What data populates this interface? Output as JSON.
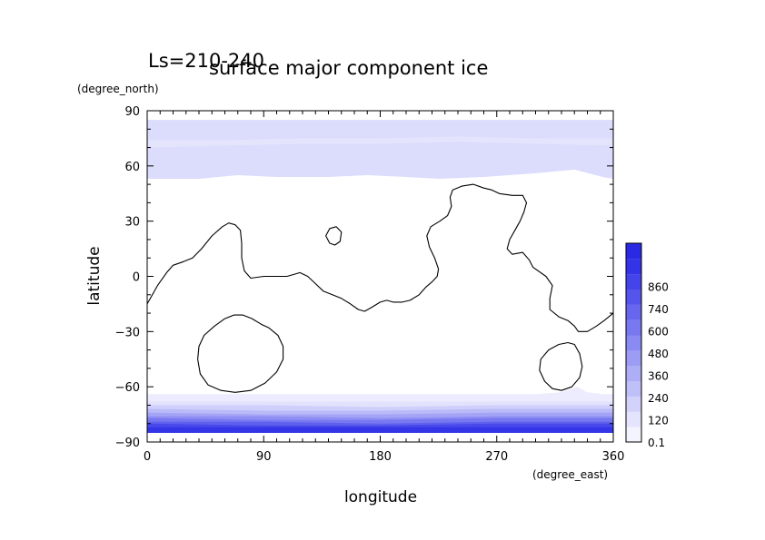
{
  "chart_data": {
    "type": "contour-map",
    "title": "surface major component ice",
    "subtitle": "Ls=210-240",
    "xlabel": "longitude",
    "ylabel": "latitude",
    "x_units": "(degree_east)",
    "y_units": "(degree_north)",
    "xlim": [
      0,
      360
    ],
    "ylim": [
      -90,
      90
    ],
    "x_ticks": [
      0,
      90,
      180,
      270,
      360
    ],
    "y_ticks": [
      -90,
      -60,
      -30,
      0,
      30,
      60,
      90
    ],
    "colorbar_labels": [
      "0.1",
      "120",
      "240",
      "360",
      "480",
      "600",
      "740",
      "860"
    ],
    "colorbar_colors": [
      "#f4f4ff",
      "#e4e4fd",
      "#d2d2fb",
      "#c0c0f9",
      "#aeaef7",
      "#9c9cf5",
      "#8a8af3",
      "#7878f1",
      "#6666ef",
      "#5555ed",
      "#4444eb",
      "#3333e8",
      "#2a2ae4"
    ],
    "north_cap": {
      "lat_top": 85,
      "outer_edge": [
        [
          0,
          53
        ],
        [
          40,
          53
        ],
        [
          70,
          55
        ],
        [
          100,
          54
        ],
        [
          140,
          54
        ],
        [
          170,
          55
        ],
        [
          200,
          54
        ],
        [
          225,
          53
        ],
        [
          260,
          54
        ],
        [
          300,
          56
        ],
        [
          330,
          58
        ],
        [
          352,
          54
        ],
        [
          360,
          53
        ]
      ],
      "band_levels": [
        {
          "color": "#e4e4fd",
          "lower": [
            [
              0,
              70
            ],
            [
              60,
              71
            ],
            [
              120,
              72
            ],
            [
              180,
              72
            ],
            [
              240,
              73
            ],
            [
              300,
              72
            ],
            [
              360,
              71
            ]
          ],
          "upper": [
            [
              0,
              74
            ],
            [
              60,
              74
            ],
            [
              120,
              75
            ],
            [
              180,
              75
            ],
            [
              240,
              76
            ],
            [
              300,
              75
            ],
            [
              360,
              75
            ]
          ]
        }
      ],
      "colors": [
        "#dcdcfc",
        "#d3d3fb"
      ]
    },
    "south_cap": {
      "lat_bottom": -85,
      "outer_edge": [
        [
          0,
          -64
        ],
        [
          60,
          -64
        ],
        [
          120,
          -64
        ],
        [
          180,
          -64
        ],
        [
          240,
          -64
        ],
        [
          300,
          -64
        ],
        [
          320,
          -63
        ],
        [
          332,
          -60
        ],
        [
          340,
          -63
        ],
        [
          352,
          -64
        ],
        [
          360,
          -64
        ]
      ],
      "levels": [
        {
          "color": "#e2e2fd",
          "edge": [
            [
              0,
              -68
            ],
            [
              90,
              -68
            ],
            [
              180,
              -68
            ],
            [
              270,
              -68
            ],
            [
              360,
              -68
            ]
          ]
        },
        {
          "color": "#cfcffb",
          "edge": [
            [
              0,
              -70
            ],
            [
              90,
              -70
            ],
            [
              180,
              -71
            ],
            [
              270,
              -70
            ],
            [
              360,
              -70
            ]
          ]
        },
        {
          "color": "#babaf8",
          "edge": [
            [
              0,
              -72
            ],
            [
              90,
              -73
            ],
            [
              180,
              -73
            ],
            [
              270,
              -72
            ],
            [
              360,
              -72
            ]
          ]
        },
        {
          "color": "#a4a4f6",
          "edge": [
            [
              0,
              -74
            ],
            [
              90,
              -75
            ],
            [
              180,
              -75
            ],
            [
              270,
              -74
            ],
            [
              360,
              -74
            ]
          ]
        },
        {
          "color": "#8e8ef4",
          "edge": [
            [
              0,
              -76
            ],
            [
              90,
              -76
            ],
            [
              180,
              -77
            ],
            [
              270,
              -76
            ],
            [
              360,
              -76
            ]
          ]
        },
        {
          "color": "#7878f1",
          "edge": [
            [
              0,
              -77
            ],
            [
              90,
              -78
            ],
            [
              180,
              -78
            ],
            [
              270,
              -77
            ],
            [
              360,
              -77
            ]
          ]
        },
        {
          "color": "#6060ee",
          "edge": [
            [
              0,
              -79
            ],
            [
              90,
              -79
            ],
            [
              180,
              -80
            ],
            [
              270,
              -79
            ],
            [
              360,
              -79
            ]
          ]
        },
        {
          "color": "#4848eb",
          "edge": [
            [
              0,
              -80
            ],
            [
              90,
              -81
            ],
            [
              180,
              -81
            ],
            [
              270,
              -80
            ],
            [
              360,
              -80
            ]
          ]
        },
        {
          "color": "#3535e8",
          "edge": [
            [
              0,
              -82
            ],
            [
              90,
              -82
            ],
            [
              180,
              -82
            ],
            [
              270,
              -82
            ],
            [
              360,
              -82
            ]
          ]
        }
      ]
    },
    "topography_contours": [
      {
        "closed": false,
        "points": [
          [
            0,
            -15
          ],
          [
            8,
            -5
          ],
          [
            15,
            2
          ],
          [
            20,
            6
          ],
          [
            28,
            8
          ],
          [
            35,
            10
          ],
          [
            42,
            15
          ],
          [
            50,
            22
          ],
          [
            58,
            27
          ],
          [
            63,
            29
          ],
          [
            68,
            28
          ],
          [
            72,
            25
          ],
          [
            73,
            18
          ],
          [
            73,
            10
          ],
          [
            75,
            3
          ],
          [
            80,
            -1
          ],
          [
            90,
            0
          ],
          [
            100,
            0
          ],
          [
            108,
            0
          ],
          [
            113,
            1
          ],
          [
            118,
            2
          ],
          [
            124,
            0
          ],
          [
            130,
            -4
          ],
          [
            136,
            -8
          ],
          [
            143,
            -10
          ],
          [
            150,
            -12
          ],
          [
            157,
            -15
          ],
          [
            163,
            -18
          ],
          [
            168,
            -19
          ],
          [
            173,
            -17
          ],
          [
            180,
            -14
          ],
          [
            185,
            -13
          ],
          [
            190,
            -14
          ],
          [
            197,
            -14
          ],
          [
            203,
            -13
          ],
          [
            210,
            -10
          ],
          [
            215,
            -6
          ],
          [
            220,
            -3
          ],
          [
            224,
            0
          ],
          [
            225,
            4
          ],
          [
            222,
            10
          ],
          [
            218,
            16
          ],
          [
            216,
            22
          ],
          [
            219,
            27
          ],
          [
            226,
            30
          ],
          [
            232,
            33
          ],
          [
            235,
            38
          ],
          [
            234,
            43
          ],
          [
            236,
            47
          ],
          [
            243,
            49
          ],
          [
            252,
            50
          ],
          [
            260,
            48
          ],
          [
            266,
            47
          ],
          [
            272,
            45
          ],
          [
            282,
            44
          ],
          [
            290,
            44
          ],
          [
            293,
            40
          ],
          [
            291,
            35
          ],
          [
            288,
            30
          ],
          [
            284,
            25
          ],
          [
            280,
            20
          ],
          [
            278,
            15
          ],
          [
            282,
            12
          ],
          [
            290,
            13
          ],
          [
            295,
            9
          ],
          [
            298,
            5
          ],
          [
            308,
            0
          ],
          [
            313,
            -5
          ],
          [
            311,
            -12
          ],
          [
            311,
            -18
          ],
          [
            318,
            -22
          ],
          [
            325,
            -24
          ],
          [
            330,
            -27
          ],
          [
            333,
            -30
          ],
          [
            340,
            -30
          ],
          [
            347,
            -27
          ],
          [
            353,
            -24
          ],
          [
            360,
            -20
          ]
        ]
      },
      {
        "closed": true,
        "points": [
          [
            138,
            22
          ],
          [
            141,
            26
          ],
          [
            146,
            27
          ],
          [
            150,
            24
          ],
          [
            149,
            19
          ],
          [
            145,
            17
          ],
          [
            141,
            18
          ]
        ]
      },
      {
        "closed": true,
        "points": [
          [
            67,
            -21
          ],
          [
            60,
            -23
          ],
          [
            52,
            -27
          ],
          [
            44,
            -32
          ],
          [
            40,
            -38
          ],
          [
            39,
            -45
          ],
          [
            41,
            -53
          ],
          [
            47,
            -59
          ],
          [
            57,
            -62
          ],
          [
            68,
            -63
          ],
          [
            80,
            -62
          ],
          [
            91,
            -58
          ],
          [
            100,
            -52
          ],
          [
            105,
            -45
          ],
          [
            105,
            -38
          ],
          [
            101,
            -32
          ],
          [
            94,
            -28
          ],
          [
            88,
            -26
          ],
          [
            81,
            -23
          ],
          [
            74,
            -21
          ]
        ]
      },
      {
        "closed": true,
        "points": [
          [
            325,
            -36
          ],
          [
            318,
            -37
          ],
          [
            310,
            -40
          ],
          [
            304,
            -45
          ],
          [
            303,
            -51
          ],
          [
            307,
            -57
          ],
          [
            313,
            -61
          ],
          [
            320,
            -62
          ],
          [
            328,
            -60
          ],
          [
            334,
            -55
          ],
          [
            336,
            -49
          ],
          [
            334,
            -42
          ],
          [
            330,
            -37
          ]
        ]
      }
    ]
  }
}
